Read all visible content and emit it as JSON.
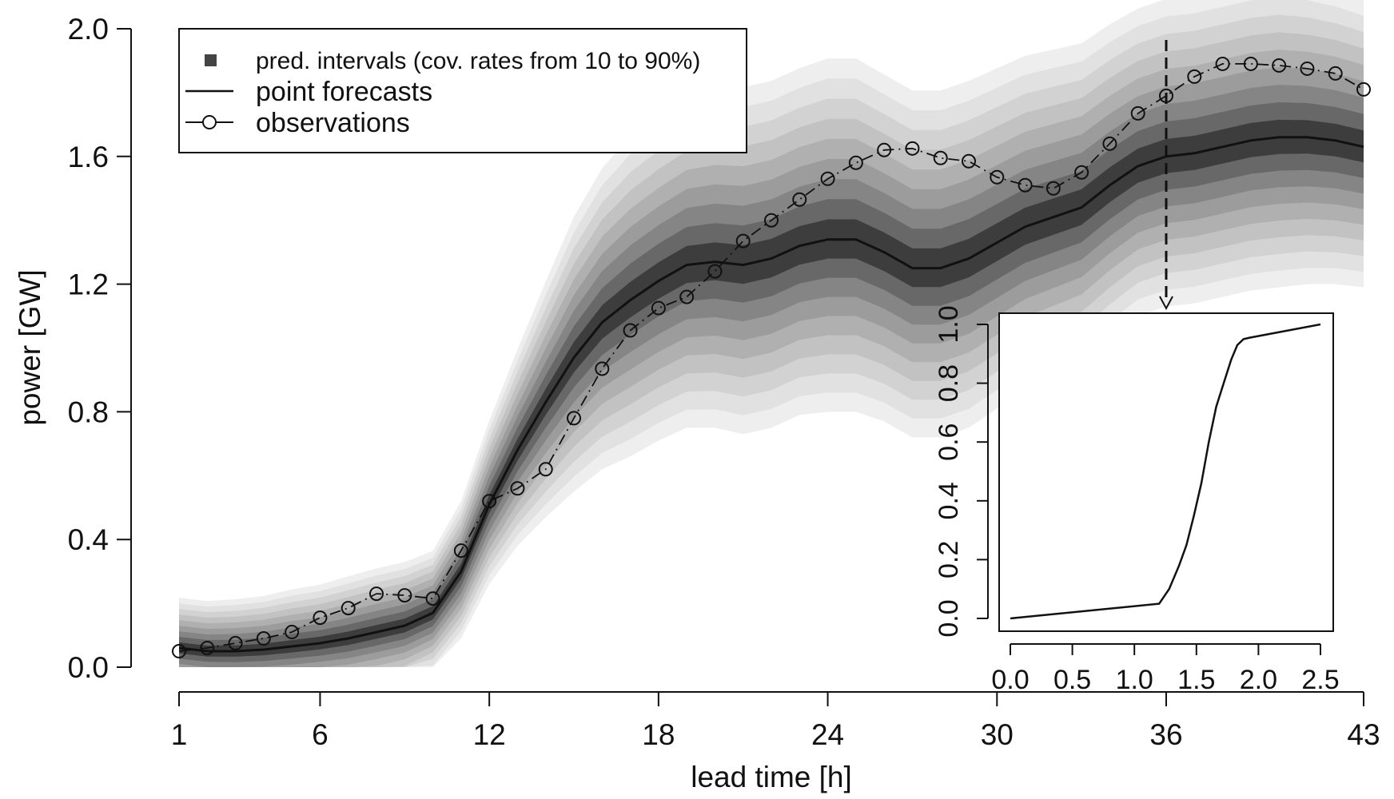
{
  "chart_data": [
    {
      "type": "area",
      "xlabel": "lead time [h]",
      "ylabel": "power [GW]",
      "xlim": [
        1,
        43
      ],
      "ylim": [
        0,
        2.0
      ],
      "x_ticks": [
        1,
        6,
        12,
        18,
        24,
        30,
        36,
        43
      ],
      "y_ticks": [
        "0.0",
        "0.4",
        "0.8",
        "1.2",
        "1.6",
        "2.0"
      ],
      "x": [
        1,
        2,
        3,
        4,
        5,
        6,
        7,
        8,
        9,
        10,
        11,
        12,
        13,
        14,
        15,
        16,
        17,
        18,
        19,
        20,
        21,
        22,
        23,
        24,
        25,
        26,
        27,
        28,
        29,
        30,
        31,
        32,
        33,
        34,
        35,
        36,
        37,
        38,
        39,
        40,
        41,
        42,
        43
      ],
      "legend": {
        "placement": "top-left",
        "entries": [
          {
            "label": "pred. intervals (cov. rates from 10 to 90%)",
            "symbol": "square"
          },
          {
            "label": "point forecasts",
            "symbol": "line"
          },
          {
            "label": "observations",
            "symbol": "line-circle"
          }
        ]
      },
      "series": [
        {
          "name": "point forecasts",
          "values": [
            0.06,
            0.05,
            0.05,
            0.055,
            0.065,
            0.075,
            0.09,
            0.11,
            0.13,
            0.17,
            0.3,
            0.51,
            0.68,
            0.83,
            0.97,
            1.08,
            1.15,
            1.21,
            1.26,
            1.27,
            1.26,
            1.28,
            1.32,
            1.34,
            1.34,
            1.3,
            1.25,
            1.25,
            1.28,
            1.33,
            1.38,
            1.41,
            1.44,
            1.51,
            1.57,
            1.6,
            1.61,
            1.63,
            1.65,
            1.66,
            1.66,
            1.65,
            1.63
          ]
        },
        {
          "name": "observations",
          "values": [
            0.05,
            0.06,
            0.075,
            0.09,
            0.11,
            0.155,
            0.185,
            0.23,
            0.225,
            0.215,
            0.365,
            0.52,
            0.56,
            0.62,
            0.78,
            0.935,
            1.055,
            1.125,
            1.16,
            1.24,
            1.335,
            1.4,
            1.465,
            1.53,
            1.58,
            1.62,
            1.625,
            1.595,
            1.585,
            1.535,
            1.51,
            1.5,
            1.55,
            1.64,
            1.735,
            1.79,
            1.85,
            1.89,
            1.89,
            1.885,
            1.875,
            1.86,
            1.81
          ]
        }
      ],
      "interval_half_width_at_90pct": [
        0.15,
        0.15,
        0.155,
        0.16,
        0.17,
        0.175,
        0.185,
        0.19,
        0.19,
        0.185,
        0.21,
        0.25,
        0.3,
        0.36,
        0.42,
        0.46,
        0.49,
        0.5,
        0.51,
        0.52,
        0.53,
        0.53,
        0.53,
        0.54,
        0.54,
        0.53,
        0.53,
        0.53,
        0.53,
        0.52,
        0.51,
        0.5,
        0.49,
        0.48,
        0.47,
        0.47,
        0.47,
        0.47,
        0.47,
        0.47,
        0.46,
        0.45,
        0.44
      ],
      "interval_levels": [
        0.1,
        0.2,
        0.3,
        0.4,
        0.5,
        0.6,
        0.7,
        0.8,
        0.9
      ],
      "marker_line": {
        "x": 36,
        "style": "dashed"
      }
    },
    {
      "type": "line",
      "placement": "inset-bottom-right",
      "x_ticks": [
        "0.0",
        "0.5",
        "1.0",
        "1.5",
        "2.0",
        "2.5"
      ],
      "y_ticks": [
        "0.0",
        "0.2",
        "0.4",
        "0.6",
        "0.8",
        "1.0"
      ],
      "xlim": [
        0,
        2.5
      ],
      "ylim": [
        0,
        1.0
      ],
      "series": [
        {
          "x": [
            0.0,
            1.2,
            1.28,
            1.36,
            1.42,
            1.48,
            1.54,
            1.6,
            1.66,
            1.72,
            1.78,
            1.83,
            1.88,
            1.93,
            2.5
          ],
          "values": [
            0.0,
            0.05,
            0.1,
            0.18,
            0.25,
            0.35,
            0.46,
            0.6,
            0.72,
            0.8,
            0.88,
            0.93,
            0.95,
            0.955,
            1.0
          ]
        }
      ]
    }
  ]
}
